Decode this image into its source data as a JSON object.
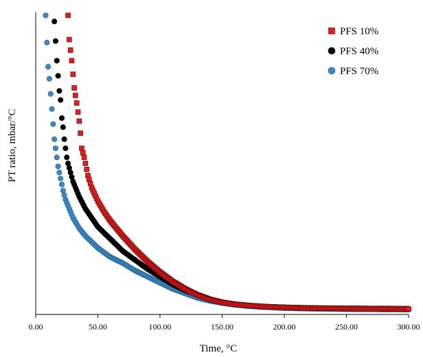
{
  "chart_data": {
    "type": "scatter",
    "title": "",
    "xlabel": "Time, °C",
    "ylabel": "PT ratio, mbar/°C",
    "xlim": [
      0,
      300
    ],
    "ylim": [
      0,
      100
    ],
    "x_ticks": [
      "0.00",
      "50.00",
      "100.00",
      "150.00",
      "200.00",
      "250.00",
      "300.00"
    ],
    "y_ticks_labeled": false,
    "grid": false,
    "legend_position": "top-right",
    "series": [
      {
        "name": "PFS 10%",
        "marker": "square",
        "color": "#e02020",
        "edge": "#5a0000",
        "points": [
          [
            26,
            99
          ],
          [
            27,
            91
          ],
          [
            29,
            84
          ],
          [
            31,
            75
          ],
          [
            33,
            70
          ],
          [
            35,
            64
          ],
          [
            36,
            60
          ],
          [
            37,
            55
          ],
          [
            39,
            52
          ],
          [
            40,
            50
          ],
          [
            42,
            46
          ],
          [
            45,
            42
          ],
          [
            50,
            37.5
          ],
          [
            55,
            34
          ],
          [
            60,
            31
          ],
          [
            65,
            28.5
          ],
          [
            70,
            26
          ],
          [
            80,
            21.5
          ],
          [
            90,
            17.5
          ],
          [
            100,
            14
          ],
          [
            110,
            11
          ],
          [
            120,
            8.5
          ],
          [
            130,
            6.5
          ],
          [
            140,
            5
          ],
          [
            150,
            4
          ],
          [
            160,
            3.4
          ],
          [
            170,
            3
          ],
          [
            180,
            2.7
          ],
          [
            190,
            2.5
          ],
          [
            200,
            2.3
          ],
          [
            210,
            2.2
          ],
          [
            220,
            2.1
          ],
          [
            230,
            2.05
          ],
          [
            240,
            2
          ],
          [
            250,
            1.95
          ],
          [
            260,
            1.9
          ],
          [
            270,
            1.9
          ],
          [
            280,
            1.85
          ],
          [
            290,
            1.85
          ],
          [
            300,
            1.8
          ]
        ]
      },
      {
        "name": "PFS 40%",
        "marker": "circle",
        "color": "#000000",
        "edge": "#000000",
        "points": [
          [
            15,
            97
          ],
          [
            17,
            84
          ],
          [
            19,
            74
          ],
          [
            20,
            71
          ],
          [
            21,
            65
          ],
          [
            22,
            62
          ],
          [
            23,
            58
          ],
          [
            24,
            55
          ],
          [
            25,
            52
          ],
          [
            26,
            50
          ],
          [
            28,
            47
          ],
          [
            30,
            44
          ],
          [
            35,
            39
          ],
          [
            40,
            35
          ],
          [
            45,
            32
          ],
          [
            50,
            29
          ],
          [
            55,
            27
          ],
          [
            60,
            25
          ],
          [
            65,
            23
          ],
          [
            70,
            21
          ],
          [
            80,
            18
          ],
          [
            90,
            15
          ],
          [
            100,
            12.5
          ],
          [
            110,
            10
          ],
          [
            120,
            8
          ],
          [
            130,
            6.5
          ],
          [
            140,
            5
          ],
          [
            150,
            4
          ],
          [
            160,
            3.4
          ],
          [
            170,
            3
          ],
          [
            180,
            2.7
          ],
          [
            190,
            2.5
          ],
          [
            200,
            2.35
          ],
          [
            210,
            2.25
          ],
          [
            220,
            2.15
          ],
          [
            230,
            2.1
          ],
          [
            240,
            2.05
          ],
          [
            250,
            2
          ],
          [
            260,
            2
          ],
          [
            270,
            1.95
          ],
          [
            280,
            1.95
          ],
          [
            290,
            1.9
          ],
          [
            300,
            1.9
          ]
        ]
      },
      {
        "name": "PFS 70%",
        "marker": "circle",
        "color": "#3d88c0",
        "edge": "#1f5c8e",
        "points": [
          [
            8,
            99
          ],
          [
            9,
            90
          ],
          [
            10,
            82
          ],
          [
            11,
            78
          ],
          [
            12,
            73
          ],
          [
            13,
            68
          ],
          [
            14,
            63
          ],
          [
            15,
            58
          ],
          [
            16,
            55
          ],
          [
            17,
            52
          ],
          [
            18,
            49
          ],
          [
            19,
            47
          ],
          [
            20,
            45
          ],
          [
            22,
            41
          ],
          [
            24,
            38
          ],
          [
            26,
            36
          ],
          [
            28,
            34
          ],
          [
            30,
            32
          ],
          [
            35,
            28.5
          ],
          [
            40,
            26
          ],
          [
            45,
            24
          ],
          [
            50,
            22
          ],
          [
            55,
            20.5
          ],
          [
            60,
            19
          ],
          [
            65,
            18
          ],
          [
            70,
            17
          ],
          [
            80,
            14.5
          ],
          [
            90,
            12.5
          ],
          [
            100,
            10.5
          ],
          [
            110,
            8.5
          ],
          [
            120,
            7
          ],
          [
            130,
            5.5
          ],
          [
            140,
            4.5
          ],
          [
            150,
            3.8
          ],
          [
            160,
            3.2
          ],
          [
            170,
            2.8
          ],
          [
            180,
            2.5
          ],
          [
            190,
            2.3
          ],
          [
            200,
            2.1
          ],
          [
            210,
            2
          ],
          [
            220,
            1.9
          ],
          [
            230,
            1.85
          ],
          [
            240,
            1.8
          ],
          [
            250,
            1.75
          ],
          [
            260,
            1.7
          ],
          [
            270,
            1.7
          ],
          [
            280,
            1.65
          ],
          [
            290,
            1.65
          ],
          [
            300,
            1.6
          ]
        ]
      }
    ]
  }
}
